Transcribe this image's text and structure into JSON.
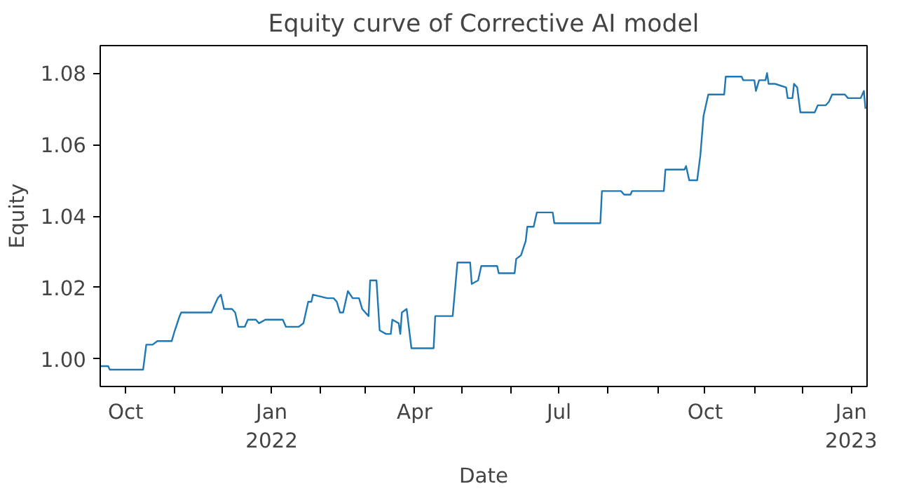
{
  "chart_data": {
    "type": "line",
    "title": "Equity curve of Corrective AI model",
    "xlabel": "Date",
    "ylabel": "Equity",
    "x": [
      "2021-09-15",
      "2021-09-20",
      "2021-09-21",
      "2021-10-12",
      "2021-10-14",
      "2021-10-16",
      "2021-10-18",
      "2021-10-21",
      "2021-10-23",
      "2021-10-30",
      "2021-11-01",
      "2021-11-04",
      "2021-11-05",
      "2021-11-10",
      "2021-11-12",
      "2021-11-18",
      "2021-11-24",
      "2021-11-26",
      "2021-11-28",
      "2021-11-30",
      "2021-12-02",
      "2021-12-07",
      "2021-12-09",
      "2021-12-11",
      "2021-12-15",
      "2021-12-17",
      "2021-12-22",
      "2021-12-24",
      "2021-12-28",
      "2022-01-08",
      "2022-01-10",
      "2022-01-18",
      "2022-01-21",
      "2022-01-24",
      "2022-01-26",
      "2022-01-27",
      "2022-02-05",
      "2022-02-09",
      "2022-02-11",
      "2022-02-13",
      "2022-02-15",
      "2022-02-18",
      "2022-02-21",
      "2022-02-25",
      "2022-02-27",
      "2022-03-03",
      "2022-03-04",
      "2022-03-08",
      "2022-03-09",
      "2022-03-10",
      "2022-03-14",
      "2022-03-17",
      "2022-03-18",
      "2022-03-22",
      "2022-03-23",
      "2022-03-24",
      "2022-03-27",
      "2022-03-30",
      "2022-04-13",
      "2022-04-14",
      "2022-04-25",
      "2022-04-28",
      "2022-05-06",
      "2022-05-07",
      "2022-05-11",
      "2022-05-13",
      "2022-05-23",
      "2022-05-24",
      "2022-06-03",
      "2022-06-04",
      "2022-06-07",
      "2022-06-10",
      "2022-06-11",
      "2022-06-15",
      "2022-06-17",
      "2022-06-27",
      "2022-06-28",
      "2022-07-27",
      "2022-07-28",
      "2022-08-09",
      "2022-08-11",
      "2022-08-15",
      "2022-08-16",
      "2022-08-23",
      "2022-08-29",
      "2022-09-05",
      "2022-09-06",
      "2022-09-18",
      "2022-09-19",
      "2022-09-21",
      "2022-09-26",
      "2022-09-28",
      "2022-09-30",
      "2022-10-03",
      "2022-10-13",
      "2022-10-14",
      "2022-10-24",
      "2022-10-25",
      "2022-11-01",
      "2022-11-02",
      "2022-11-04",
      "2022-11-08",
      "2022-11-09",
      "2022-11-10",
      "2022-11-14",
      "2022-11-21",
      "2022-11-22",
      "2022-11-25",
      "2022-11-26",
      "2022-11-28",
      "2022-11-30",
      "2022-12-09",
      "2022-12-11",
      "2022-12-16",
      "2022-12-18",
      "2022-12-20",
      "2022-12-28",
      "2022-12-30",
      "2023-01-07",
      "2023-01-09",
      "2023-01-10"
    ],
    "series": [
      {
        "color": "#1f77b4",
        "values": [
          0.998,
          0.998,
          0.997,
          0.997,
          1.004,
          1.004,
          1.004,
          1.005,
          1.005,
          1.005,
          1.008,
          1.012,
          1.013,
          1.013,
          1.013,
          1.013,
          1.013,
          1.015,
          1.017,
          1.018,
          1.014,
          1.014,
          1.013,
          1.009,
          1.009,
          1.011,
          1.011,
          1.01,
          1.011,
          1.011,
          1.009,
          1.009,
          1.01,
          1.016,
          1.016,
          1.018,
          1.017,
          1.017,
          1.016,
          1.013,
          1.013,
          1.019,
          1.017,
          1.017,
          1.014,
          1.012,
          1.022,
          1.022,
          1.015,
          1.008,
          1.007,
          1.007,
          1.011,
          1.01,
          1.007,
          1.013,
          1.014,
          1.003,
          1.003,
          1.012,
          1.012,
          1.027,
          1.027,
          1.021,
          1.022,
          1.026,
          1.026,
          1.024,
          1.024,
          1.028,
          1.029,
          1.033,
          1.037,
          1.037,
          1.041,
          1.041,
          1.038,
          1.038,
          1.047,
          1.047,
          1.046,
          1.046,
          1.047,
          1.047,
          1.047,
          1.047,
          1.053,
          1.053,
          1.054,
          1.05,
          1.05,
          1.057,
          1.068,
          1.074,
          1.074,
          1.079,
          1.079,
          1.078,
          1.078,
          1.075,
          1.078,
          1.078,
          1.08,
          1.077,
          1.077,
          1.076,
          1.073,
          1.073,
          1.077,
          1.076,
          1.069,
          1.069,
          1.071,
          1.071,
          1.072,
          1.074,
          1.074,
          1.073,
          1.073,
          1.075,
          1.07
        ]
      }
    ],
    "xlim": [
      "2021-09-15",
      "2023-01-11"
    ],
    "xticks": [
      {
        "value": "2021-10-01",
        "label": "Oct"
      },
      {
        "value": "2021-11-01",
        "label": null
      },
      {
        "value": "2021-12-01",
        "label": null
      },
      {
        "value": "2022-01-01",
        "label": "Jan\n2022"
      },
      {
        "value": "2022-02-01",
        "label": null
      },
      {
        "value": "2022-03-01",
        "label": null
      },
      {
        "value": "2022-04-01",
        "label": "Apr"
      },
      {
        "value": "2022-05-01",
        "label": null
      },
      {
        "value": "2022-06-01",
        "label": null
      },
      {
        "value": "2022-07-01",
        "label": "Jul"
      },
      {
        "value": "2022-08-01",
        "label": null
      },
      {
        "value": "2022-09-01",
        "label": null
      },
      {
        "value": "2022-10-01",
        "label": "Oct"
      },
      {
        "value": "2022-11-01",
        "label": null
      },
      {
        "value": "2022-12-01",
        "label": null
      },
      {
        "value": "2023-01-01",
        "label": "Jan\n2023"
      }
    ],
    "ylim": [
      0.9923,
      1.0877
    ],
    "yticks": [
      {
        "value": 1.0,
        "label": "1.00"
      },
      {
        "value": 1.02,
        "label": "1.02"
      },
      {
        "value": 1.04,
        "label": "1.04"
      },
      {
        "value": 1.06,
        "label": "1.06"
      },
      {
        "value": 1.08,
        "label": "1.08"
      }
    ],
    "grid": false
  }
}
